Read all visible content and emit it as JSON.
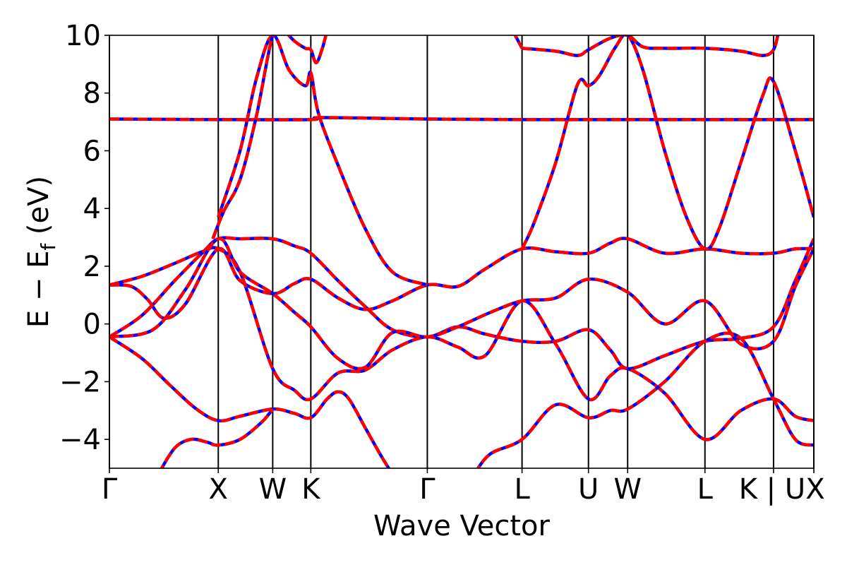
{
  "chart_data": {
    "type": "line",
    "title": "",
    "xlabel": "Wave Vector",
    "ylabel_main": "E − E",
    "ylabel_sub": "f",
    "ylabel_unit": " (eV)",
    "ylim": [
      -5,
      10
    ],
    "xlim": [
      0,
      6.47
    ],
    "grid": false,
    "legend": "none",
    "colors": {
      "solid": "#0000ff",
      "dashed": "#ff0000"
    },
    "yticks": [
      {
        "value": -4,
        "label": "−4"
      },
      {
        "value": -2,
        "label": "−2"
      },
      {
        "value": 0,
        "label": "0"
      },
      {
        "value": 2,
        "label": "2"
      },
      {
        "value": 4,
        "label": "4"
      },
      {
        "value": 6,
        "label": "6"
      },
      {
        "value": 8,
        "label": "8"
      },
      {
        "value": 10,
        "label": "10"
      }
    ],
    "kpoints": [
      {
        "x": 0.0,
        "label": "Γ"
      },
      {
        "x": 1.0,
        "label": "X"
      },
      {
        "x": 1.5,
        "label": "W"
      },
      {
        "x": 1.85,
        "label": "K"
      },
      {
        "x": 2.92,
        "label": "Γ"
      },
      {
        "x": 3.79,
        "label": "L"
      },
      {
        "x": 4.4,
        "label": "U"
      },
      {
        "x": 4.76,
        "label": "W"
      },
      {
        "x": 5.47,
        "label": "L"
      },
      {
        "x": 6.1,
        "label": "K | U"
      },
      {
        "x": 6.47,
        "label": "X"
      }
    ],
    "series": [
      {
        "values": [
          [
            0,
            -0.45
          ],
          [
            0.3,
            -1.2
          ],
          [
            0.55,
            -2.1
          ],
          [
            0.8,
            -2.95
          ],
          [
            1.0,
            -3.35
          ],
          [
            1.2,
            -3.2
          ],
          [
            1.5,
            -2.95
          ],
          [
            1.7,
            -3.1
          ],
          [
            1.85,
            -3.25
          ],
          [
            2.0,
            -2.6
          ],
          [
            2.1,
            -2.35
          ],
          [
            2.2,
            -2.6
          ],
          [
            2.35,
            -3.6
          ],
          [
            2.5,
            -4.6
          ],
          [
            2.6,
            -5.2
          ]
        ]
      },
      {
        "values": [
          [
            0.45,
            -5.2
          ],
          [
            0.6,
            -4.3
          ],
          [
            0.75,
            -4.0
          ],
          [
            0.9,
            -4.1
          ],
          [
            1.0,
            -4.2
          ],
          [
            1.2,
            -4.0
          ],
          [
            1.4,
            -3.4
          ],
          [
            1.5,
            -2.95
          ]
        ]
      },
      {
        "values": [
          [
            0,
            -0.45
          ],
          [
            0.3,
            0.3
          ],
          [
            0.6,
            1.5
          ],
          [
            0.85,
            2.45
          ],
          [
            1.0,
            2.95
          ],
          [
            1.2,
            2.95
          ],
          [
            1.5,
            2.95
          ],
          [
            1.7,
            2.7
          ],
          [
            1.85,
            2.45
          ],
          [
            2.1,
            1.5
          ],
          [
            2.35,
            0.6
          ],
          [
            2.6,
            -0.2
          ],
          [
            2.92,
            -0.45
          ],
          [
            3.2,
            -0.1
          ],
          [
            3.45,
            -0.35
          ],
          [
            3.79,
            -0.6
          ],
          [
            4.1,
            -0.6
          ],
          [
            4.4,
            -0.2
          ],
          [
            4.6,
            -0.9
          ],
          [
            4.76,
            -1.55
          ],
          [
            5.1,
            -1.1
          ],
          [
            5.47,
            -0.6
          ],
          [
            5.8,
            -0.5
          ],
          [
            6.1,
            -0.1
          ],
          [
            6.3,
            1.5
          ],
          [
            6.47,
            2.95
          ]
        ]
      },
      {
        "values": [
          [
            0,
            1.35
          ],
          [
            0.2,
            1.3
          ],
          [
            0.35,
            0.85
          ],
          [
            0.5,
            0.2
          ],
          [
            0.7,
            0.7
          ],
          [
            1.0,
            2.6
          ],
          [
            1.2,
            1.5
          ],
          [
            1.5,
            1.05
          ],
          [
            1.7,
            1.4
          ],
          [
            1.85,
            1.55
          ],
          [
            2.1,
            0.9
          ],
          [
            2.35,
            0.5
          ],
          [
            2.6,
            0.8
          ],
          [
            2.92,
            1.35
          ],
          [
            3.2,
            1.3
          ],
          [
            3.45,
            1.9
          ],
          [
            3.79,
            2.6
          ],
          [
            4.1,
            2.5
          ],
          [
            4.4,
            2.45
          ],
          [
            4.6,
            2.8
          ],
          [
            4.76,
            2.95
          ],
          [
            5.1,
            2.45
          ],
          [
            5.47,
            2.6
          ],
          [
            5.8,
            2.45
          ],
          [
            6.1,
            2.45
          ],
          [
            6.3,
            2.6
          ],
          [
            6.47,
            2.6
          ]
        ]
      },
      {
        "values": [
          [
            0,
            1.35
          ],
          [
            0.3,
            1.65
          ],
          [
            0.6,
            2.1
          ],
          [
            0.85,
            2.5
          ],
          [
            1.0,
            2.6
          ],
          [
            1.2,
            1.8
          ],
          [
            1.5,
            -1.55
          ],
          [
            1.7,
            -2.3
          ],
          [
            1.85,
            -2.6
          ],
          [
            2.1,
            -1.7
          ],
          [
            2.35,
            -1.6
          ],
          [
            2.6,
            -0.9
          ],
          [
            2.92,
            -0.45
          ],
          [
            3.2,
            -0.8
          ],
          [
            3.45,
            -1.1
          ],
          [
            3.79,
            0.8
          ],
          [
            4.1,
            -0.7
          ],
          [
            4.4,
            -2.6
          ],
          [
            4.6,
            -1.8
          ],
          [
            4.76,
            -1.55
          ],
          [
            5.1,
            -2.4
          ],
          [
            5.47,
            -4.0
          ],
          [
            5.8,
            -3.0
          ],
          [
            6.1,
            -2.6
          ],
          [
            6.3,
            -3.2
          ],
          [
            6.47,
            -3.35
          ]
        ]
      },
      {
        "values": [
          [
            3.35,
            -5.2
          ],
          [
            3.5,
            -4.5
          ],
          [
            3.79,
            -4.0
          ],
          [
            4.1,
            -2.8
          ],
          [
            4.4,
            -3.25
          ],
          [
            4.6,
            -3.0
          ],
          [
            4.76,
            -2.95
          ],
          [
            5.1,
            -2.0
          ],
          [
            5.47,
            -0.6
          ],
          [
            5.8,
            -0.5
          ],
          [
            6.1,
            -2.6
          ],
          [
            6.3,
            -4.0
          ],
          [
            6.47,
            -4.2
          ]
        ]
      },
      {
        "values": [
          [
            0,
            -0.45
          ],
          [
            0.4,
            -0.2
          ],
          [
            0.7,
            1.2
          ],
          [
            1.0,
            2.95
          ],
          [
            1.2,
            1.8
          ],
          [
            1.5,
            1.05
          ],
          [
            1.7,
            0.4
          ],
          [
            1.85,
            -0.1
          ],
          [
            2.1,
            -1.2
          ],
          [
            2.35,
            -1.5
          ],
          [
            2.6,
            -0.3
          ],
          [
            2.92,
            -0.45
          ],
          [
            3.2,
            -0.1
          ],
          [
            3.5,
            0.4
          ],
          [
            3.79,
            0.8
          ],
          [
            4.1,
            0.9
          ],
          [
            4.4,
            1.55
          ],
          [
            4.76,
            1.1
          ],
          [
            5.1,
            0.0
          ],
          [
            5.47,
            0.8
          ],
          [
            5.8,
            -0.7
          ],
          [
            6.1,
            -0.6
          ],
          [
            6.3,
            1.3
          ],
          [
            6.47,
            2.6
          ]
        ]
      },
      {
        "values": [
          [
            0,
            7.1
          ],
          [
            1.0,
            7.08
          ],
          [
            1.85,
            7.08
          ],
          [
            1.95,
            7.15
          ],
          [
            2.92,
            7.1
          ],
          [
            3.79,
            7.08
          ],
          [
            4.76,
            7.08
          ],
          [
            5.47,
            7.08
          ],
          [
            6.1,
            7.08
          ],
          [
            6.47,
            7.08
          ]
        ]
      },
      {
        "values": [
          [
            1.0,
            3.7
          ],
          [
            1.2,
            6.0
          ],
          [
            1.35,
            8.5
          ],
          [
            1.5,
            10.0
          ],
          [
            1.65,
            8.8
          ],
          [
            1.8,
            8.25
          ],
          [
            1.85,
            8.7
          ],
          [
            1.92,
            7.3
          ],
          [
            2.1,
            5.5
          ],
          [
            2.35,
            3.3
          ],
          [
            2.6,
            1.8
          ],
          [
            2.92,
            1.35
          ]
        ]
      },
      {
        "values": [
          [
            0.95,
            2.95
          ],
          [
            1.05,
            3.9
          ],
          [
            1.2,
            5.0
          ],
          [
            1.35,
            7.2
          ],
          [
            1.5,
            10.0
          ],
          [
            1.6,
            10.2
          ]
        ]
      },
      {
        "values": [
          [
            1.6,
            10.2
          ],
          [
            1.7,
            9.8
          ],
          [
            1.8,
            9.55
          ],
          [
            1.85,
            9.5
          ],
          [
            1.9,
            9.05
          ],
          [
            1.96,
            9.6
          ],
          [
            2.0,
            10.2
          ]
        ]
      },
      {
        "values": [
          [
            3.79,
            2.6
          ],
          [
            3.9,
            3.5
          ],
          [
            4.1,
            5.6
          ],
          [
            4.3,
            8.3
          ],
          [
            4.4,
            8.25
          ],
          [
            4.5,
            8.6
          ],
          [
            4.65,
            9.6
          ],
          [
            4.76,
            10.0
          ],
          [
            4.9,
            8.8
          ],
          [
            5.1,
            6.0
          ],
          [
            5.3,
            3.7
          ],
          [
            5.47,
            2.6
          ],
          [
            5.6,
            3.3
          ],
          [
            5.8,
            5.6
          ],
          [
            6.0,
            7.9
          ],
          [
            6.1,
            8.4
          ],
          [
            6.3,
            6.0
          ],
          [
            6.47,
            3.7
          ]
        ]
      },
      {
        "values": [
          [
            3.79,
            9.55
          ],
          [
            4.1,
            9.45
          ],
          [
            4.3,
            9.3
          ],
          [
            4.4,
            9.5
          ],
          [
            4.6,
            9.9
          ],
          [
            4.76,
            10.0
          ],
          [
            4.9,
            9.6
          ],
          [
            5.1,
            9.55
          ],
          [
            5.47,
            9.55
          ],
          [
            5.8,
            9.45
          ],
          [
            6.0,
            9.3
          ],
          [
            6.1,
            9.5
          ],
          [
            6.15,
            10.2
          ]
        ]
      },
      {
        "values": [
          [
            3.7,
            10.2
          ],
          [
            3.79,
            9.55
          ]
        ]
      },
      {
        "values": [
          [
            4.68,
            10.2
          ],
          [
            4.76,
            10.0
          ],
          [
            4.86,
            10.2
          ]
        ]
      }
    ]
  }
}
